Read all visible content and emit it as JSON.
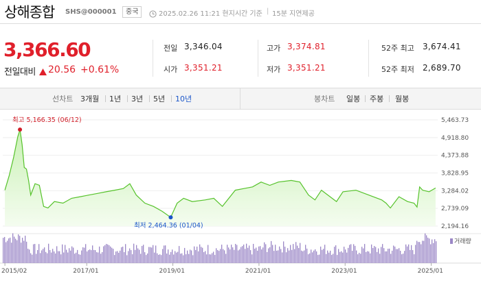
{
  "header": {
    "index_name": "상해종합",
    "code": "SHS@000001",
    "market": "중국",
    "timestamp": "2025.02.26 11:21 현지시간 기준",
    "delay_note": "15분 지연제공"
  },
  "price": {
    "current": "3,366.60",
    "change_label": "전일대비",
    "change_abs": "20.56",
    "change_pct": "+0.61%",
    "direction": "up"
  },
  "stats": {
    "prev_close_label": "전일",
    "prev_close": "3,346.04",
    "open_label": "시가",
    "open": "3,351.21",
    "high_label": "고가",
    "high": "3,374.81",
    "low_label": "저가",
    "low": "3,351.21",
    "w52_high_label": "52주 최고",
    "w52_high": "3,674.41",
    "w52_low_label": "52주 최저",
    "w52_low": "2,689.70"
  },
  "range_bar": {
    "line_label": "선차트",
    "line_options": [
      "3개월",
      "1년",
      "3년",
      "5년",
      "10년"
    ],
    "line_selected": "10년",
    "candle_label": "봉차트",
    "candle_options": [
      "일봉",
      "주봉",
      "월봉"
    ]
  },
  "colors": {
    "up": "#e0202b",
    "accent_blue": "#1a55c9",
    "line": "#55c22a",
    "area_top": "#c6f0b0",
    "volume": "#9b87c6"
  },
  "chart_data": {
    "type": "area",
    "y_ticks": [
      "5,463.73",
      "4,918.80",
      "4,373.88",
      "3,828.95",
      "3,284.02",
      "2,739.09",
      "2,194.16"
    ],
    "x_ticks": [
      "2015/02",
      "2017/01",
      "2019/01",
      "2021/01",
      "2023/01",
      "2025/01"
    ],
    "ylim": [
      2194.16,
      5463.73
    ],
    "max_annotation": "최고 5,166.35 (06/12)",
    "min_annotation": "최저 2,464.36 (01/04)",
    "volume_legend": "거래량",
    "series": [
      {
        "x": [
          2015.15,
          2015.25,
          2015.35,
          2015.45,
          2015.5,
          2015.55,
          2015.6,
          2015.65,
          2015.7,
          2015.75,
          2015.85,
          2015.95,
          2016.05,
          2016.15,
          2016.3,
          2016.5,
          2016.7,
          2016.9,
          2017.1,
          2017.3,
          2017.5,
          2017.7,
          2017.9,
          2018.05,
          2018.2,
          2018.4,
          2018.6,
          2018.8,
          2019.0,
          2019.15,
          2019.3,
          2019.5,
          2019.8,
          2020.0,
          2020.2,
          2020.5,
          2020.7,
          2020.9,
          2021.1,
          2021.3,
          2021.5,
          2021.8,
          2022.0,
          2022.2,
          2022.35,
          2022.5,
          2022.7,
          2022.85,
          2023.0,
          2023.3,
          2023.6,
          2023.9,
          2024.0,
          2024.1,
          2024.3,
          2024.5,
          2024.65,
          2024.72,
          2024.78,
          2024.85,
          2025.0,
          2025.15
        ],
        "y": [
          3300,
          3750,
          4300,
          4950,
          5166,
          4700,
          4000,
          3950,
          3600,
          3150,
          3500,
          3450,
          2800,
          2750,
          2950,
          2900,
          3050,
          3100,
          3150,
          3200,
          3250,
          3300,
          3350,
          3500,
          3150,
          2900,
          2800,
          2650,
          2464,
          2900,
          3050,
          2950,
          3000,
          3050,
          2800,
          3300,
          3350,
          3400,
          3550,
          3450,
          3550,
          3600,
          3550,
          3150,
          3000,
          3300,
          3100,
          2950,
          3250,
          3300,
          3150,
          3000,
          2900,
          2750,
          3100,
          2950,
          2900,
          2780,
          3400,
          3300,
          3250,
          3366
        ]
      }
    ]
  }
}
